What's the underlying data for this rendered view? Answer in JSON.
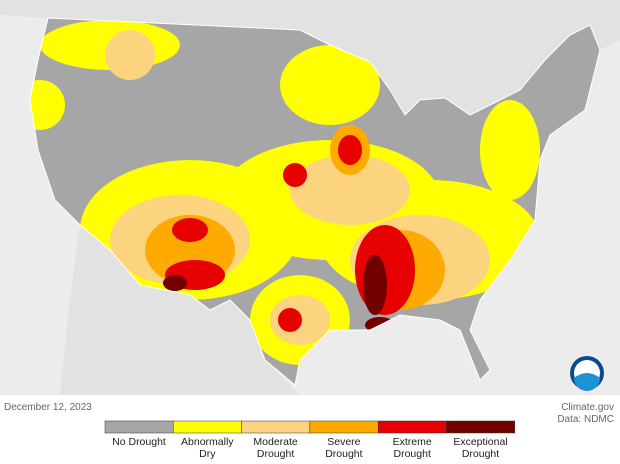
{
  "date": "December 12, 2023",
  "credit": "Climate.gov",
  "source": "Data: NDMC",
  "legend": {
    "items": [
      {
        "label": "No Drought",
        "color": "#a6a6a6"
      },
      {
        "label": "Abnormally Dry",
        "color": "#ffff00"
      },
      {
        "label": "Moderate Drought",
        "color": "#fcd37f"
      },
      {
        "label": "Severe Drought",
        "color": "#ffaa00"
      },
      {
        "label": "Extreme Drought",
        "color": "#e60000"
      },
      {
        "label": "Exceptional Drought",
        "color": "#730000"
      }
    ]
  }
}
